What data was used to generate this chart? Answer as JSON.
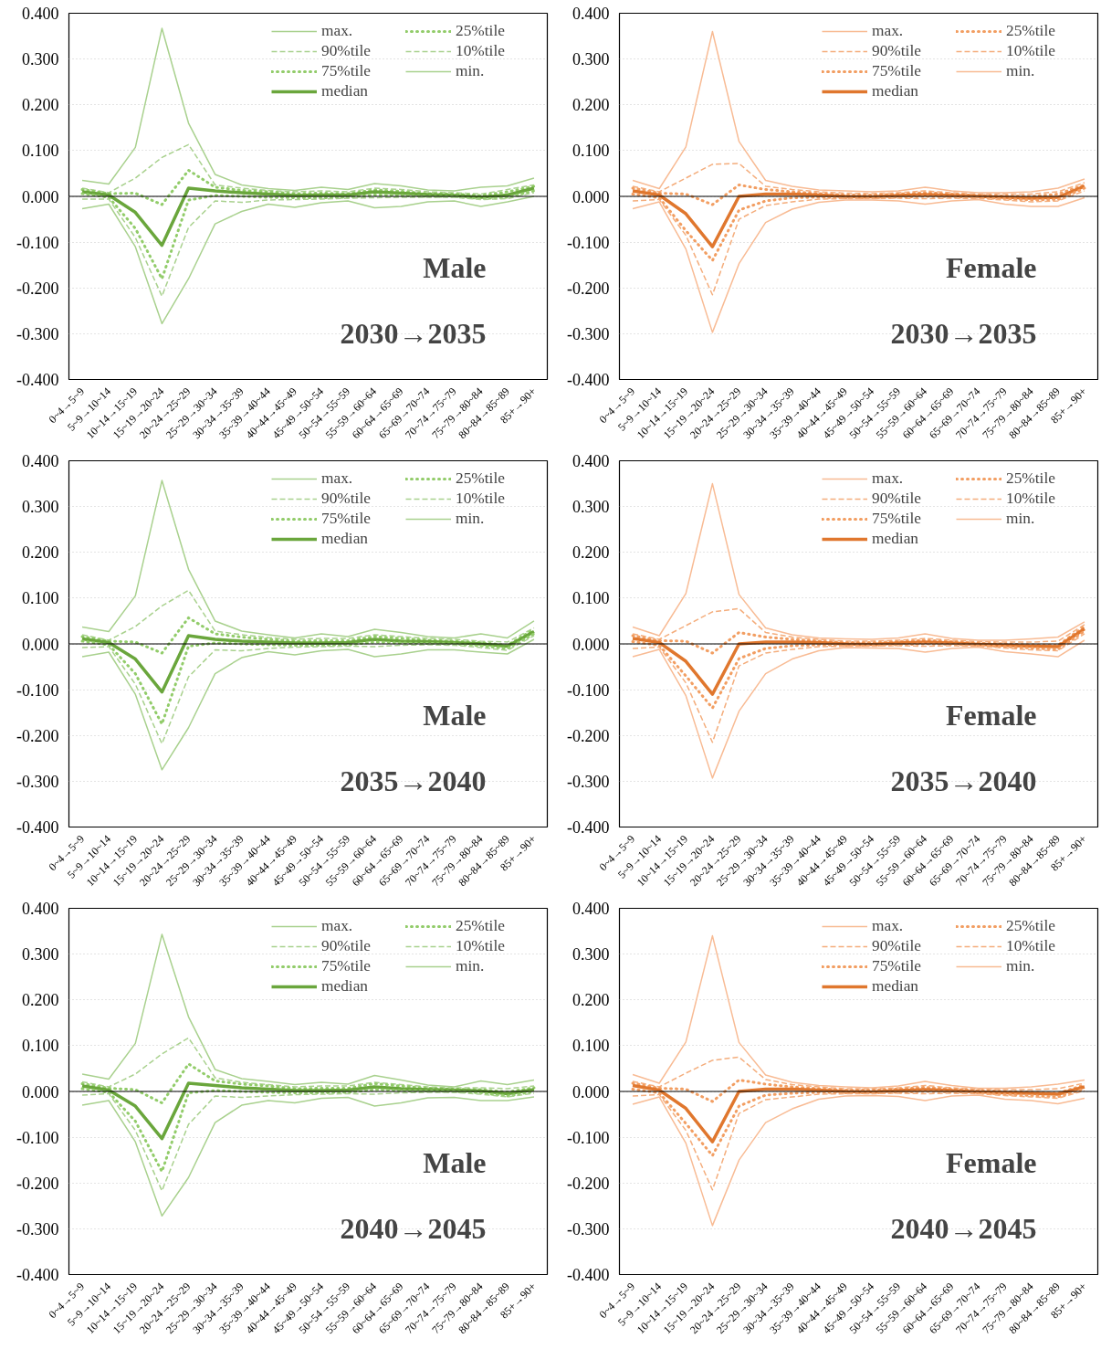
{
  "chart_data": [
    {
      "type": "line",
      "title": "Male",
      "subtitle": "2030→2035",
      "grid": "y",
      "legend": "top right",
      "categories": [
        "0~4→5~9",
        "5~9→10~14",
        "10~14→15~19",
        "15~19→20~24",
        "20~24→25~29",
        "25~29→30~34",
        "30~34→35~39",
        "35~39→40~44",
        "40~44→45~49",
        "45~49→50~54",
        "50~54→55~59",
        "55~59→60~64",
        "60~64→65~69",
        "65~69→70~74",
        "70~74→75~79",
        "75~79→80~84",
        "80~84→85~89",
        "85+→90+"
      ],
      "ylim": [
        -0.4,
        0.4
      ],
      "yticks": [
        {
          "value": -0.4,
          "label": "-0.400"
        },
        {
          "value": -0.3,
          "label": "-0.300"
        },
        {
          "value": -0.2,
          "label": "-0.200"
        },
        {
          "value": -0.1,
          "label": "-0.100"
        },
        {
          "value": 0,
          "label": "0.000"
        },
        {
          "value": 0.1,
          "label": "0.100"
        },
        {
          "value": 0.2,
          "label": "0.200"
        },
        {
          "value": 0.3,
          "label": "0.300"
        },
        {
          "value": 0.4,
          "label": "0.400"
        }
      ],
      "ref_lines": [
        {
          "axis": "y",
          "value": 0,
          "color": "#000000"
        }
      ],
      "series": [
        {
          "name": "max.",
          "color": "#a9d18e",
          "line_style": "solid",
          "values": [
            0.035,
            0.027,
            0.107,
            0.367,
            0.16,
            0.048,
            0.025,
            0.017,
            0.013,
            0.02,
            0.015,
            0.028,
            0.023,
            0.014,
            0.012,
            0.02,
            0.023,
            0.04
          ]
        },
        {
          "name": "90%tile",
          "color": "#a9d18e",
          "line_style": "dashed",
          "values": [
            0.018,
            0.008,
            0.04,
            0.085,
            0.113,
            0.025,
            0.018,
            0.013,
            0.01,
            0.012,
            0.01,
            0.018,
            0.015,
            0.01,
            0.008,
            0.005,
            0.015,
            0.025
          ]
        },
        {
          "name": "75%tile",
          "color": "#92cc6a",
          "line_style": "dotted",
          "values": [
            0.015,
            0.006,
            0.007,
            -0.018,
            0.057,
            0.02,
            0.013,
            0.01,
            0.006,
            0.007,
            0.006,
            0.014,
            0.011,
            0.006,
            0.005,
            0.002,
            0.01,
            0.022
          ]
        },
        {
          "name": "median",
          "color": "#6aa63c",
          "line_style": "solid",
          "values": [
            0.01,
            0.003,
            -0.035,
            -0.107,
            0.018,
            0.012,
            0.008,
            0.005,
            0.002,
            0.003,
            0.003,
            0.01,
            0.007,
            0.004,
            0.002,
            -0.002,
            0.003,
            0.018
          ]
        },
        {
          "name": "25%tile",
          "color": "#92cc6a",
          "line_style": "dotted",
          "values": [
            0.006,
            -0.002,
            -0.07,
            -0.18,
            -0.008,
            0.002,
            0.0,
            -0.002,
            -0.003,
            -0.003,
            -0.002,
            0.003,
            0.002,
            0.0,
            0.0,
            -0.005,
            -0.002,
            0.012
          ]
        },
        {
          "name": "10%tile",
          "color": "#a9d18e",
          "line_style": "dashed",
          "values": [
            -0.006,
            -0.006,
            -0.09,
            -0.218,
            -0.068,
            -0.01,
            -0.013,
            -0.008,
            -0.007,
            -0.006,
            -0.004,
            -0.003,
            -0.002,
            -0.002,
            -0.002,
            -0.007,
            -0.005,
            0.008
          ]
        },
        {
          "name": "min.",
          "color": "#a9d18e",
          "line_style": "solid",
          "values": [
            -0.027,
            -0.017,
            -0.11,
            -0.278,
            -0.18,
            -0.06,
            -0.033,
            -0.017,
            -0.024,
            -0.014,
            -0.01,
            -0.025,
            -0.022,
            -0.012,
            -0.01,
            -0.022,
            -0.012,
            0.0
          ]
        }
      ]
    },
    {
      "type": "line",
      "title": "Female",
      "subtitle": "2030→2035",
      "grid": "y",
      "legend": "top right",
      "categories": [
        "0~4→5~9",
        "5~9→10~14",
        "10~14→15~19",
        "15~19→20~24",
        "20~24→25~29",
        "25~29→30~34",
        "30~34→35~39",
        "35~39→40~44",
        "40~44→45~49",
        "45~49→50~54",
        "50~54→55~59",
        "55~59→60~64",
        "60~64→65~69",
        "65~69→70~74",
        "70~74→75~79",
        "75~79→80~84",
        "80~84→85~89",
        "85+→90+"
      ],
      "ylim": [
        -0.4,
        0.4
      ],
      "yticks": [
        {
          "value": -0.4,
          "label": "-0.400"
        },
        {
          "value": -0.3,
          "label": "-0.300"
        },
        {
          "value": -0.2,
          "label": "-0.200"
        },
        {
          "value": -0.1,
          "label": "-0.100"
        },
        {
          "value": 0,
          "label": "0.000"
        },
        {
          "value": 0.1,
          "label": "0.100"
        },
        {
          "value": 0.2,
          "label": "0.200"
        },
        {
          "value": 0.3,
          "label": "0.300"
        },
        {
          "value": 0.4,
          "label": "0.400"
        }
      ],
      "ref_lines": [
        {
          "axis": "y",
          "value": 0,
          "color": "#000000"
        }
      ],
      "series": [
        {
          "name": "max.",
          "color": "#f8bb94",
          "line_style": "solid",
          "values": [
            0.035,
            0.017,
            0.108,
            0.36,
            0.12,
            0.035,
            0.022,
            0.014,
            0.012,
            0.01,
            0.012,
            0.02,
            0.012,
            0.008,
            0.008,
            0.01,
            0.018,
            0.038
          ]
        },
        {
          "name": "90%tile",
          "color": "#f4ad7c",
          "line_style": "dashed",
          "values": [
            0.022,
            0.01,
            0.04,
            0.07,
            0.072,
            0.022,
            0.015,
            0.01,
            0.007,
            0.006,
            0.008,
            0.012,
            0.008,
            0.005,
            0.005,
            0.005,
            0.01,
            0.03
          ]
        },
        {
          "name": "75%tile",
          "color": "#f29e62",
          "line_style": "dotted",
          "values": [
            0.018,
            0.007,
            0.005,
            -0.018,
            0.025,
            0.015,
            0.01,
            0.006,
            0.003,
            0.003,
            0.005,
            0.008,
            0.005,
            0.002,
            0.001,
            0.0,
            0.005,
            0.025
          ]
        },
        {
          "name": "median",
          "color": "#e0772e",
          "line_style": "solid",
          "values": [
            0.012,
            0.003,
            -0.038,
            -0.11,
            0.0,
            0.005,
            0.005,
            0.003,
            0.0,
            -0.001,
            0.002,
            0.004,
            0.002,
            0.0,
            -0.002,
            -0.004,
            -0.002,
            0.022
          ]
        },
        {
          "name": "25%tile",
          "color": "#f29e62",
          "line_style": "dotted",
          "values": [
            0.005,
            -0.003,
            -0.075,
            -0.14,
            -0.03,
            -0.01,
            -0.003,
            -0.002,
            -0.003,
            -0.003,
            -0.002,
            0.0,
            -0.001,
            -0.002,
            -0.005,
            -0.008,
            -0.007,
            0.018
          ]
        },
        {
          "name": "10%tile",
          "color": "#f4ad7c",
          "line_style": "dashed",
          "values": [
            -0.01,
            -0.007,
            -0.085,
            -0.215,
            -0.05,
            -0.02,
            -0.012,
            -0.006,
            -0.005,
            -0.005,
            -0.004,
            -0.005,
            -0.004,
            -0.005,
            -0.008,
            -0.012,
            -0.01,
            0.012
          ]
        },
        {
          "name": "min.",
          "color": "#f8bb94",
          "line_style": "solid",
          "values": [
            -0.027,
            -0.012,
            -0.115,
            -0.297,
            -0.147,
            -0.057,
            -0.028,
            -0.013,
            -0.008,
            -0.008,
            -0.01,
            -0.017,
            -0.01,
            -0.007,
            -0.017,
            -0.022,
            -0.022,
            -0.003
          ]
        }
      ]
    },
    {
      "type": "line",
      "title": "Male",
      "subtitle": "2035→2040",
      "grid": "y",
      "legend": "top right",
      "categories": [
        "0~4→5~9",
        "5~9→10~14",
        "10~14→15~19",
        "15~19→20~24",
        "20~24→25~29",
        "25~29→30~34",
        "30~34→35~39",
        "35~39→40~44",
        "40~44→45~49",
        "45~49→50~54",
        "50~54→55~59",
        "55~59→60~64",
        "60~64→65~69",
        "65~69→70~74",
        "70~74→75~79",
        "75~79→80~84",
        "80~84→85~89",
        "85+→90+"
      ],
      "ylim": [
        -0.4,
        0.4
      ],
      "yticks": [
        {
          "value": -0.4,
          "label": "-0.400"
        },
        {
          "value": -0.3,
          "label": "-0.300"
        },
        {
          "value": -0.2,
          "label": "-0.200"
        },
        {
          "value": -0.1,
          "label": "-0.100"
        },
        {
          "value": 0,
          "label": "0.000"
        },
        {
          "value": 0.1,
          "label": "0.100"
        },
        {
          "value": 0.2,
          "label": "0.200"
        },
        {
          "value": 0.3,
          "label": "0.300"
        },
        {
          "value": 0.4,
          "label": "0.400"
        }
      ],
      "ref_lines": [
        {
          "axis": "y",
          "value": 0,
          "color": "#000000"
        }
      ],
      "series": [
        {
          "name": "max.",
          "color": "#a9d18e",
          "line_style": "solid",
          "values": [
            0.037,
            0.027,
            0.105,
            0.357,
            0.163,
            0.05,
            0.028,
            0.02,
            0.013,
            0.022,
            0.016,
            0.032,
            0.025,
            0.016,
            0.013,
            0.022,
            0.013,
            0.05
          ]
        },
        {
          "name": "90%tile",
          "color": "#a9d18e",
          "line_style": "dashed",
          "values": [
            0.02,
            0.008,
            0.038,
            0.083,
            0.117,
            0.028,
            0.02,
            0.014,
            0.01,
            0.012,
            0.012,
            0.02,
            0.016,
            0.012,
            0.01,
            0.006,
            0.004,
            0.035
          ]
        },
        {
          "name": "75%tile",
          "color": "#92cc6a",
          "line_style": "dotted",
          "values": [
            0.016,
            0.006,
            0.004,
            -0.02,
            0.057,
            0.022,
            0.015,
            0.01,
            0.006,
            0.007,
            0.007,
            0.016,
            0.012,
            0.008,
            0.006,
            0.003,
            -0.003,
            0.032
          ]
        },
        {
          "name": "median",
          "color": "#6aa63c",
          "line_style": "solid",
          "values": [
            0.011,
            0.003,
            -0.033,
            -0.105,
            0.018,
            0.01,
            0.006,
            0.004,
            0.002,
            0.002,
            0.003,
            0.01,
            0.006,
            0.005,
            0.003,
            0.0,
            -0.005,
            0.027
          ]
        },
        {
          "name": "25%tile",
          "color": "#92cc6a",
          "line_style": "dotted",
          "values": [
            0.006,
            -0.002,
            -0.065,
            -0.175,
            -0.005,
            0.002,
            0.0,
            -0.002,
            -0.003,
            -0.003,
            -0.002,
            0.004,
            0.002,
            0.001,
            0.0,
            -0.004,
            -0.01,
            0.022
          ]
        },
        {
          "name": "10%tile",
          "color": "#a9d18e",
          "line_style": "dashed",
          "values": [
            -0.008,
            -0.006,
            -0.088,
            -0.218,
            -0.072,
            -0.013,
            -0.015,
            -0.01,
            -0.007,
            -0.006,
            -0.005,
            -0.006,
            -0.003,
            -0.002,
            -0.003,
            -0.008,
            -0.014,
            0.018
          ]
        },
        {
          "name": "min.",
          "color": "#a9d18e",
          "line_style": "solid",
          "values": [
            -0.028,
            -0.018,
            -0.11,
            -0.275,
            -0.183,
            -0.065,
            -0.03,
            -0.017,
            -0.024,
            -0.015,
            -0.012,
            -0.028,
            -0.022,
            -0.013,
            -0.013,
            -0.018,
            -0.022,
            0.01
          ]
        }
      ]
    },
    {
      "type": "line",
      "title": "Female",
      "subtitle": "2035→2040",
      "grid": "y",
      "legend": "top right",
      "categories": [
        "0~4→5~9",
        "5~9→10~14",
        "10~14→15~19",
        "15~19→20~24",
        "20~24→25~29",
        "25~29→30~34",
        "30~34→35~39",
        "35~39→40~44",
        "40~44→45~49",
        "45~49→50~54",
        "50~54→55~59",
        "55~59→60~64",
        "60~64→65~69",
        "65~69→70~74",
        "70~74→75~79",
        "75~79→80~84",
        "80~84→85~89",
        "85+→90+"
      ],
      "ylim": [
        -0.4,
        0.4
      ],
      "yticks": [
        {
          "value": -0.4,
          "label": "-0.400"
        },
        {
          "value": -0.3,
          "label": "-0.300"
        },
        {
          "value": -0.2,
          "label": "-0.200"
        },
        {
          "value": -0.1,
          "label": "-0.100"
        },
        {
          "value": 0,
          "label": "0.000"
        },
        {
          "value": 0.1,
          "label": "0.100"
        },
        {
          "value": 0.2,
          "label": "0.200"
        },
        {
          "value": 0.3,
          "label": "0.300"
        },
        {
          "value": 0.4,
          "label": "0.400"
        }
      ],
      "ref_lines": [
        {
          "axis": "y",
          "value": 0,
          "color": "#000000"
        }
      ],
      "series": [
        {
          "name": "max.",
          "color": "#f8bb94",
          "line_style": "solid",
          "values": [
            0.037,
            0.018,
            0.11,
            0.35,
            0.108,
            0.035,
            0.02,
            0.013,
            0.011,
            0.01,
            0.013,
            0.022,
            0.012,
            0.008,
            0.008,
            0.011,
            0.015,
            0.048
          ]
        },
        {
          "name": "90%tile",
          "color": "#f4ad7c",
          "line_style": "dashed",
          "values": [
            0.022,
            0.01,
            0.04,
            0.07,
            0.077,
            0.025,
            0.015,
            0.01,
            0.006,
            0.006,
            0.008,
            0.012,
            0.008,
            0.005,
            0.004,
            0.004,
            0.006,
            0.042
          ]
        },
        {
          "name": "75%tile",
          "color": "#f29e62",
          "line_style": "dotted",
          "values": [
            0.018,
            0.007,
            0.006,
            -0.02,
            0.025,
            0.015,
            0.01,
            0.006,
            0.003,
            0.003,
            0.005,
            0.008,
            0.005,
            0.002,
            0.0,
            -0.002,
            -0.003,
            0.038
          ]
        },
        {
          "name": "median",
          "color": "#e0772e",
          "line_style": "solid",
          "values": [
            0.012,
            0.003,
            -0.038,
            -0.11,
            0.0,
            0.004,
            0.004,
            0.003,
            0.0,
            -0.001,
            0.002,
            0.004,
            0.002,
            -0.001,
            -0.003,
            -0.005,
            -0.006,
            0.033
          ]
        },
        {
          "name": "25%tile",
          "color": "#f29e62",
          "line_style": "dotted",
          "values": [
            0.005,
            -0.003,
            -0.07,
            -0.14,
            -0.032,
            -0.01,
            -0.004,
            -0.002,
            -0.003,
            -0.003,
            -0.002,
            0.0,
            -0.001,
            -0.003,
            -0.006,
            -0.009,
            -0.012,
            0.028
          ]
        },
        {
          "name": "10%tile",
          "color": "#f4ad7c",
          "line_style": "dashed",
          "values": [
            -0.01,
            -0.007,
            -0.085,
            -0.215,
            -0.048,
            -0.02,
            -0.012,
            -0.006,
            -0.005,
            -0.005,
            -0.004,
            -0.005,
            -0.004,
            -0.005,
            -0.009,
            -0.013,
            -0.015,
            0.022
          ]
        },
        {
          "name": "min.",
          "color": "#f8bb94",
          "line_style": "solid",
          "values": [
            -0.028,
            -0.012,
            -0.113,
            -0.293,
            -0.147,
            -0.065,
            -0.033,
            -0.015,
            -0.008,
            -0.009,
            -0.01,
            -0.018,
            -0.01,
            -0.007,
            -0.017,
            -0.022,
            -0.028,
            0.008
          ]
        }
      ]
    },
    {
      "type": "line",
      "title": "Male",
      "subtitle": "2040→2045",
      "grid": "y",
      "legend": "top right",
      "categories": [
        "0~4→5~9",
        "5~9→10~14",
        "10~14→15~19",
        "15~19→20~24",
        "20~24→25~29",
        "25~29→30~34",
        "30~34→35~39",
        "35~39→40~44",
        "40~44→45~49",
        "45~49→50~54",
        "50~54→55~59",
        "55~59→60~64",
        "60~64→65~69",
        "65~69→70~74",
        "70~74→75~79",
        "75~79→80~84",
        "80~84→85~89",
        "85+→90+"
      ],
      "ylim": [
        -0.4,
        0.4
      ],
      "yticks": [
        {
          "value": -0.4,
          "label": "-0.400"
        },
        {
          "value": -0.3,
          "label": "-0.300"
        },
        {
          "value": -0.2,
          "label": "-0.200"
        },
        {
          "value": -0.1,
          "label": "-0.100"
        },
        {
          "value": 0,
          "label": "0.000"
        },
        {
          "value": 0.1,
          "label": "0.100"
        },
        {
          "value": 0.2,
          "label": "0.200"
        },
        {
          "value": 0.3,
          "label": "0.300"
        },
        {
          "value": 0.4,
          "label": "0.400"
        }
      ],
      "ref_lines": [
        {
          "axis": "y",
          "value": 0,
          "color": "#000000"
        }
      ],
      "series": [
        {
          "name": "max.",
          "color": "#a9d18e",
          "line_style": "solid",
          "values": [
            0.038,
            0.027,
            0.105,
            0.343,
            0.163,
            0.048,
            0.028,
            0.022,
            0.015,
            0.02,
            0.016,
            0.035,
            0.025,
            0.014,
            0.01,
            0.023,
            0.015,
            0.025
          ]
        },
        {
          "name": "90%tile",
          "color": "#a9d18e",
          "line_style": "dashed",
          "values": [
            0.021,
            0.01,
            0.038,
            0.082,
            0.117,
            0.03,
            0.02,
            0.015,
            0.01,
            0.012,
            0.012,
            0.02,
            0.015,
            0.01,
            0.008,
            0.008,
            0.006,
            0.012
          ]
        },
        {
          "name": "75%tile",
          "color": "#92cc6a",
          "line_style": "dotted",
          "values": [
            0.017,
            0.007,
            0.004,
            -0.025,
            0.06,
            0.023,
            0.016,
            0.012,
            0.006,
            0.007,
            0.007,
            0.017,
            0.012,
            0.007,
            0.005,
            0.004,
            -0.001,
            0.008
          ]
        },
        {
          "name": "median",
          "color": "#6aa63c",
          "line_style": "solid",
          "values": [
            0.012,
            0.003,
            -0.032,
            -0.103,
            0.018,
            0.013,
            0.008,
            0.005,
            0.002,
            0.002,
            0.003,
            0.01,
            0.006,
            0.004,
            0.003,
            0.001,
            -0.005,
            0.004
          ]
        },
        {
          "name": "25%tile",
          "color": "#92cc6a",
          "line_style": "dotted",
          "values": [
            0.006,
            -0.002,
            -0.065,
            -0.175,
            -0.003,
            0.002,
            0.0,
            -0.002,
            -0.003,
            -0.003,
            -0.002,
            0.004,
            0.002,
            0.001,
            0.0,
            -0.003,
            -0.01,
            0.0
          ]
        },
        {
          "name": "10%tile",
          "color": "#a9d18e",
          "line_style": "dashed",
          "values": [
            -0.008,
            -0.005,
            -0.085,
            -0.217,
            -0.072,
            -0.01,
            -0.013,
            -0.01,
            -0.007,
            -0.006,
            -0.005,
            -0.006,
            -0.003,
            -0.002,
            -0.002,
            -0.006,
            -0.012,
            -0.004
          ]
        },
        {
          "name": "min.",
          "color": "#a9d18e",
          "line_style": "solid",
          "values": [
            -0.03,
            -0.02,
            -0.11,
            -0.272,
            -0.188,
            -0.068,
            -0.03,
            -0.02,
            -0.025,
            -0.015,
            -0.013,
            -0.032,
            -0.025,
            -0.014,
            -0.013,
            -0.02,
            -0.02,
            -0.012
          ]
        }
      ]
    },
    {
      "type": "line",
      "title": "Female",
      "subtitle": "2040→2045",
      "grid": "y",
      "legend": "top right",
      "categories": [
        "0~4→5~9",
        "5~9→10~14",
        "10~14→15~19",
        "15~19→20~24",
        "20~24→25~29",
        "25~29→30~34",
        "30~34→35~39",
        "35~39→40~44",
        "40~44→45~49",
        "45~49→50~54",
        "50~54→55~59",
        "55~59→60~64",
        "60~64→65~69",
        "65~69→70~74",
        "70~74→75~79",
        "75~79→80~84",
        "80~84→85~89",
        "85+→90+"
      ],
      "ylim": [
        -0.4,
        0.4
      ],
      "yticks": [
        {
          "value": -0.4,
          "label": "-0.400"
        },
        {
          "value": -0.3,
          "label": "-0.300"
        },
        {
          "value": -0.2,
          "label": "-0.200"
        },
        {
          "value": -0.1,
          "label": "-0.100"
        },
        {
          "value": 0,
          "label": "0.000"
        },
        {
          "value": 0.1,
          "label": "0.100"
        },
        {
          "value": 0.2,
          "label": "0.200"
        },
        {
          "value": 0.3,
          "label": "0.300"
        },
        {
          "value": 0.4,
          "label": "0.400"
        }
      ],
      "ref_lines": [
        {
          "axis": "y",
          "value": 0,
          "color": "#000000"
        }
      ],
      "series": [
        {
          "name": "max.",
          "color": "#f8bb94",
          "line_style": "solid",
          "values": [
            0.037,
            0.018,
            0.108,
            0.34,
            0.107,
            0.036,
            0.02,
            0.013,
            0.01,
            0.008,
            0.012,
            0.022,
            0.013,
            0.007,
            0.007,
            0.01,
            0.016,
            0.025
          ]
        },
        {
          "name": "90%tile",
          "color": "#f4ad7c",
          "line_style": "dashed",
          "values": [
            0.022,
            0.01,
            0.04,
            0.068,
            0.075,
            0.026,
            0.015,
            0.01,
            0.006,
            0.006,
            0.008,
            0.013,
            0.008,
            0.005,
            0.004,
            0.004,
            0.006,
            0.018
          ]
        },
        {
          "name": "75%tile",
          "color": "#f29e62",
          "line_style": "dotted",
          "values": [
            0.018,
            0.007,
            0.005,
            -0.022,
            0.025,
            0.016,
            0.01,
            0.006,
            0.003,
            0.003,
            0.005,
            0.009,
            0.005,
            0.002,
            0.0,
            -0.002,
            -0.004,
            0.014
          ]
        },
        {
          "name": "median",
          "color": "#e0772e",
          "line_style": "solid",
          "values": [
            0.013,
            0.003,
            -0.037,
            -0.11,
            0.0,
            0.005,
            0.005,
            0.003,
            0.0,
            -0.001,
            0.002,
            0.004,
            0.002,
            -0.001,
            -0.003,
            -0.004,
            -0.006,
            0.01
          ]
        },
        {
          "name": "25%tile",
          "color": "#f29e62",
          "line_style": "dotted",
          "values": [
            0.005,
            -0.003,
            -0.07,
            -0.14,
            -0.032,
            -0.008,
            -0.004,
            -0.002,
            -0.003,
            -0.003,
            -0.002,
            0.0,
            -0.001,
            -0.003,
            -0.006,
            -0.009,
            -0.012,
            0.006
          ]
        },
        {
          "name": "10%tile",
          "color": "#f4ad7c",
          "line_style": "dashed",
          "values": [
            -0.01,
            -0.007,
            -0.085,
            -0.215,
            -0.048,
            -0.018,
            -0.012,
            -0.006,
            -0.005,
            -0.005,
            -0.004,
            -0.005,
            -0.004,
            -0.005,
            -0.009,
            -0.012,
            -0.015,
            0.002
          ]
        },
        {
          "name": "min.",
          "color": "#f8bb94",
          "line_style": "solid",
          "values": [
            -0.028,
            -0.012,
            -0.113,
            -0.293,
            -0.15,
            -0.068,
            -0.038,
            -0.017,
            -0.01,
            -0.009,
            -0.011,
            -0.02,
            -0.01,
            -0.008,
            -0.017,
            -0.02,
            -0.027,
            -0.015
          ]
        }
      ]
    }
  ]
}
